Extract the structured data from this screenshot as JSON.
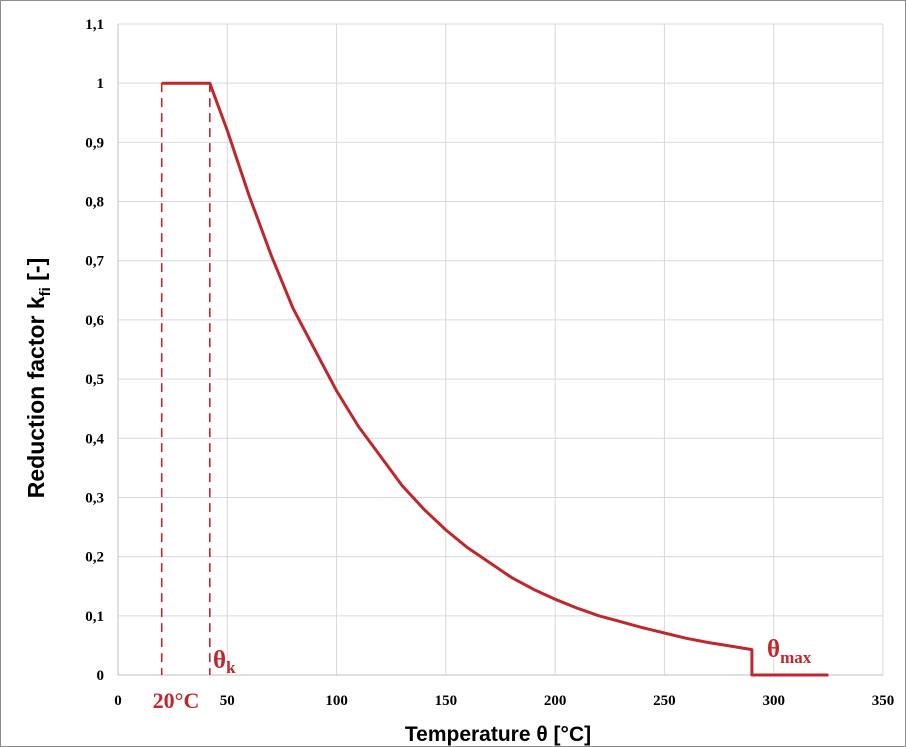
{
  "chart_data": {
    "type": "line",
    "title": "",
    "xlabel": "Temperature θ [°C]",
    "ylabel_main": "Reduction factor k",
    "ylabel_sub": "fi",
    "ylabel_suffix": " [-]",
    "xlim": [
      0,
      350
    ],
    "ylim": [
      0,
      1.1
    ],
    "x_ticks": [
      0,
      50,
      100,
      150,
      200,
      250,
      300,
      350
    ],
    "x_tick_labels": [
      "0",
      "50",
      "100",
      "150",
      "200",
      "250",
      "300",
      "350"
    ],
    "y_ticks": [
      0,
      0.1,
      0.2,
      0.3,
      0.4,
      0.5,
      0.6,
      0.7,
      0.8,
      0.9,
      1.0,
      1.1
    ],
    "y_tick_labels": [
      "0",
      "0,1",
      "0,2",
      "0,3",
      "0,4",
      "0,5",
      "0,6",
      "0,7",
      "0,8",
      "0,9",
      "1",
      "1,1"
    ],
    "grid": true,
    "legend": "none",
    "series": [
      {
        "color": "#c0272d",
        "x": [
          20,
          42,
          50,
          60,
          70,
          80,
          90,
          100,
          110,
          120,
          130,
          140,
          150,
          160,
          170,
          180,
          190,
          200,
          210,
          220,
          230,
          240,
          250,
          260,
          270,
          280,
          290,
          290,
          325
        ],
        "y": [
          1.0,
          1.0,
          0.92,
          0.81,
          0.71,
          0.62,
          0.55,
          0.48,
          0.42,
          0.37,
          0.32,
          0.28,
          0.245,
          0.215,
          0.19,
          0.165,
          0.145,
          0.128,
          0.113,
          0.1,
          0.09,
          0.08,
          0.071,
          0.062,
          0.055,
          0.049,
          0.043,
          0.0,
          0.0
        ]
      }
    ],
    "reference_lines": [
      {
        "x": 20,
        "y_top": 1.0,
        "color": "#c0272d",
        "style": "dashed"
      },
      {
        "x": 42,
        "y_top": 1.0,
        "color": "#c0272d",
        "style": "dashed"
      }
    ],
    "annotations": [
      {
        "id": "theta-k",
        "main": "θ",
        "sub": "k",
        "x": 42,
        "y": 0.0
      },
      {
        "id": "theta-max",
        "main": "θ",
        "sub": "max",
        "x": 290,
        "y": 0.0
      },
      {
        "id": "20c",
        "text": "20°C",
        "x": 20,
        "y": 0.0
      }
    ]
  }
}
